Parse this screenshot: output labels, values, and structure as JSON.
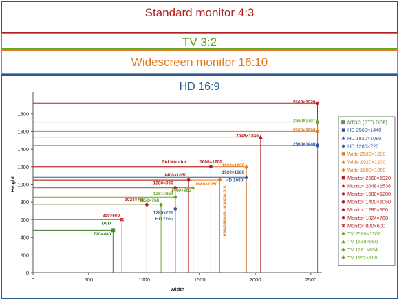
{
  "bands": {
    "standard": "Standard monitor 4:3",
    "tv": "TV 3:2",
    "widescreen": "Widescreen monitor 16:10",
    "hd": "HD 16:9"
  },
  "colors": {
    "ntsc": "#3a7d2a",
    "hd": "#2f5b94",
    "wide": "#e07a20",
    "monitor": "#b22222",
    "tv": "#6aa32a"
  },
  "chart_data": {
    "type": "scatter",
    "xlabel": "Width",
    "ylabel": "Height",
    "xlim": [
      0,
      2600
    ],
    "ylim": [
      0,
      2000
    ],
    "xticks": [
      0,
      500,
      1000,
      1500,
      2000,
      2500
    ],
    "yticks": [
      0,
      200,
      400,
      600,
      800,
      1000,
      1200,
      1400,
      1600,
      1800
    ],
    "grid": false,
    "legend_position": "right",
    "series": [
      {
        "name": "NTSC (STD DEF)",
        "x": 720,
        "y": 480,
        "group": "ntsc",
        "marker": "x-square"
      },
      {
        "name": "HD 2560×1440",
        "x": 2560,
        "y": 1440,
        "group": "hd",
        "marker": "square"
      },
      {
        "name": "HD 1920×1080",
        "x": 1920,
        "y": 1080,
        "group": "hd",
        "marker": "triangle"
      },
      {
        "name": "HD 1280×720",
        "x": 1280,
        "y": 720,
        "group": "hd",
        "marker": "circle"
      },
      {
        "name": "Wide 2560×1600",
        "x": 2560,
        "y": 1600,
        "group": "wide",
        "marker": "square"
      },
      {
        "name": "Wide 1920×1200",
        "x": 1920,
        "y": 1200,
        "group": "wide",
        "marker": "triangle"
      },
      {
        "name": "Wide 1680×1050",
        "x": 1680,
        "y": 1050,
        "group": "wide",
        "marker": "diamond"
      },
      {
        "name": "Monitor 2560×1920",
        "x": 2560,
        "y": 1920,
        "group": "monitor",
        "marker": "square"
      },
      {
        "name": "Monitor 2048×1536",
        "x": 2048,
        "y": 1536,
        "group": "monitor",
        "marker": "triangle"
      },
      {
        "name": "Monitor 1600×1200",
        "x": 1600,
        "y": 1200,
        "group": "monitor",
        "marker": "circle"
      },
      {
        "name": "Monitor 1400×1050",
        "x": 1400,
        "y": 1050,
        "group": "monitor",
        "marker": "diamond"
      },
      {
        "name": "Monitor 1280×960",
        "x": 1280,
        "y": 960,
        "group": "monitor",
        "marker": "circle"
      },
      {
        "name": "Monitor 1024×768",
        "x": 1024,
        "y": 768,
        "group": "monitor",
        "marker": "circle"
      },
      {
        "name": "Monitor 800×600",
        "x": 800,
        "y": 600,
        "group": "monitor",
        "marker": "x"
      },
      {
        "name": "TV 2560×1707",
        "x": 2560,
        "y": 1707,
        "group": "tv",
        "marker": "circle"
      },
      {
        "name": "TV 1440×960",
        "x": 1440,
        "y": 960,
        "group": "tv",
        "marker": "triangle"
      },
      {
        "name": "TV 1281×854",
        "x": 1281,
        "y": 854,
        "group": "tv",
        "marker": "diamond"
      },
      {
        "name": "TV 1152×768",
        "x": 1152,
        "y": 768,
        "group": "tv",
        "marker": "diamond"
      }
    ],
    "annotations": [
      {
        "text": "2560×1920",
        "x": 2560,
        "y": 1920,
        "group": "monitor",
        "side": "left"
      },
      {
        "text": "2560×1707",
        "x": 2560,
        "y": 1707,
        "group": "tv",
        "side": "left"
      },
      {
        "text": "2560×1600",
        "x": 2560,
        "y": 1600,
        "group": "wide",
        "side": "left"
      },
      {
        "text": "2048×1536",
        "x": 2048,
        "y": 1536,
        "group": "monitor",
        "side": "left"
      },
      {
        "text": "2560×1440",
        "x": 2560,
        "y": 1440,
        "group": "hd",
        "side": "left"
      },
      {
        "text": "Std Monitor",
        "x": 1400,
        "y": 1240,
        "group": "monitor",
        "side": "left"
      },
      {
        "text": "1600×1200",
        "x": 1600,
        "y": 1240,
        "group": "monitor",
        "side": "center"
      },
      {
        "text": "1920×1200",
        "x": 1920,
        "y": 1200,
        "group": "wide",
        "side": "left"
      },
      {
        "text": "1920×1080",
        "x": 1920,
        "y": 1120,
        "group": "hd",
        "side": "left"
      },
      {
        "text": "1400×1050",
        "x": 1400,
        "y": 1090,
        "group": "monitor",
        "side": "left"
      },
      {
        "text": "HD 1080i",
        "x": 1920,
        "y": 1030,
        "group": "hd",
        "side": "left"
      },
      {
        "text": "1280×960",
        "x": 1280,
        "y": 1000,
        "group": "monitor",
        "side": "left"
      },
      {
        "text": "1680×1050",
        "x": 1680,
        "y": 990,
        "group": "wide",
        "side": "left"
      },
      {
        "text": "1440×960",
        "x": 1440,
        "y": 920,
        "group": "tv",
        "side": "left"
      },
      {
        "text": "1281×854",
        "x": 1281,
        "y": 880,
        "group": "tv",
        "side": "left"
      },
      {
        "text": "1024×768",
        "x": 1024,
        "y": 810,
        "group": "monitor",
        "side": "left"
      },
      {
        "text": "1152×768",
        "x": 1152,
        "y": 800,
        "group": "tv",
        "side": "left"
      },
      {
        "text": "800×600",
        "x": 800,
        "y": 630,
        "group": "monitor",
        "side": "left"
      },
      {
        "text": "1280×720",
        "x": 1280,
        "y": 660,
        "group": "hd",
        "side": "left"
      },
      {
        "text": "HD 720p",
        "x": 1280,
        "y": 590,
        "group": "hd",
        "side": "left"
      },
      {
        "text": "DVD",
        "x": 720,
        "y": 540,
        "group": "ntsc",
        "side": "left"
      },
      {
        "text": "720×480",
        "x": 720,
        "y": 420,
        "group": "ntsc",
        "side": "left"
      }
    ],
    "vertical_label": {
      "text": "Std Monitor Widescreen",
      "x": 1680,
      "y": 1050,
      "group": "wide"
    }
  }
}
